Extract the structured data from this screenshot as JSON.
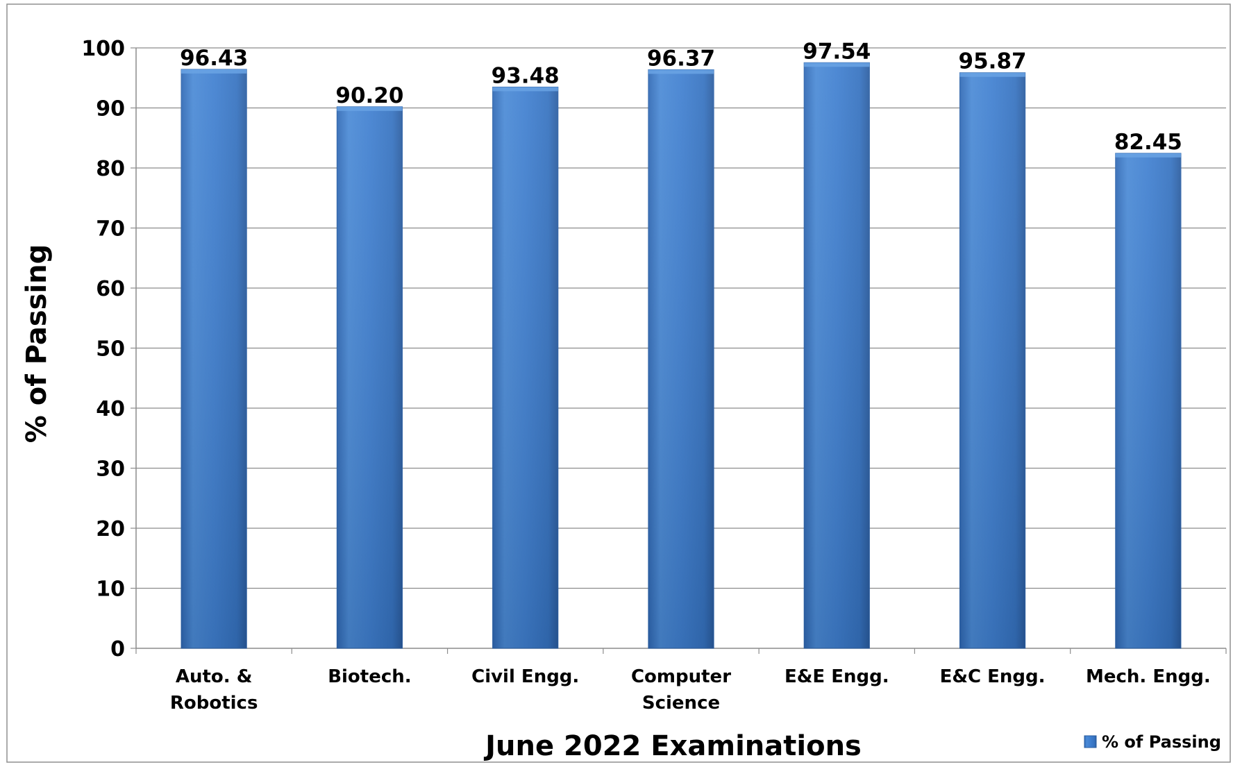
{
  "chart_data": {
    "type": "bar",
    "categories": [
      [
        "Auto. &",
        "Robotics"
      ],
      [
        "Biotech."
      ],
      [
        "Civil Engg."
      ],
      [
        "Computer",
        "Science"
      ],
      [
        "E&E Engg."
      ],
      [
        "E&C Engg."
      ],
      [
        "Mech. Engg."
      ]
    ],
    "series": [
      {
        "name": "% of Passing",
        "values": [
          96.43,
          90.2,
          93.48,
          96.37,
          97.54,
          95.87,
          82.45
        ],
        "labels": [
          "96.43",
          "90.20",
          "93.48",
          "96.37",
          "97.54",
          "95.87",
          "82.45"
        ],
        "color": "#3f7fd0"
      }
    ],
    "title": "",
    "xlabel": "June 2022 Examinations",
    "ylabel": "% of Passing",
    "ylim": [
      0,
      100
    ],
    "yticks": [
      0,
      10,
      20,
      30,
      40,
      50,
      60,
      70,
      80,
      90,
      100
    ],
    "grid": true,
    "legend": "bottom-right"
  }
}
